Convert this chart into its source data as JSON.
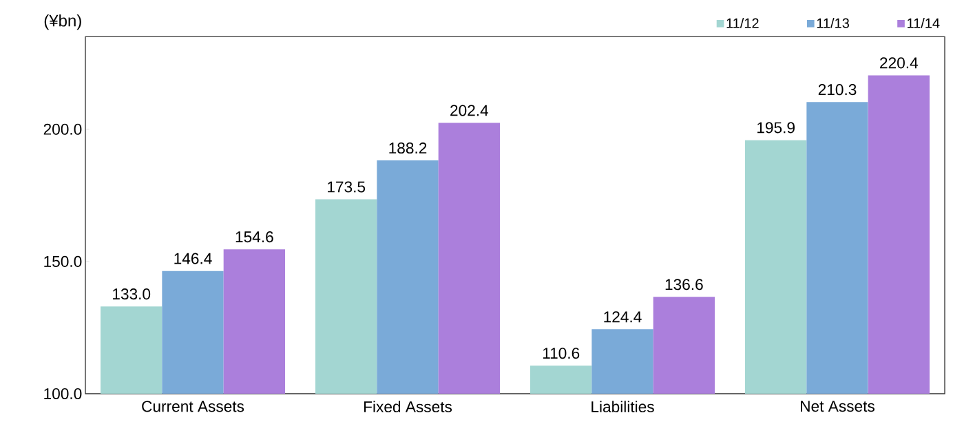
{
  "chart_data": {
    "type": "bar",
    "ylabel": "(¥bn)",
    "categories": [
      "Current Assets",
      "Fixed Assets",
      "Liabilities",
      "Net Assets"
    ],
    "series": [
      {
        "name": "11/12",
        "color": "#a3d6d2",
        "values": [
          133.0,
          173.5,
          110.6,
          195.9
        ],
        "value_labels": [
          "133.0",
          "173.5",
          "110.6",
          "195.9"
        ]
      },
      {
        "name": "11/13",
        "color": "#7aaad8",
        "values": [
          146.4,
          188.2,
          124.4,
          210.3
        ],
        "value_labels": [
          "146.4",
          "188.2",
          "124.4",
          "210.3"
        ]
      },
      {
        "name": "11/14",
        "color": "#ab7fdc",
        "values": [
          154.6,
          202.4,
          136.6,
          220.4
        ],
        "value_labels": [
          "154.6",
          "202.4",
          "136.6",
          "220.4"
        ]
      }
    ],
    "ylim": [
      100,
      235
    ],
    "yticks": [
      {
        "value": 100,
        "label": "100.0"
      },
      {
        "value": 150,
        "label": "150.0"
      },
      {
        "value": 200,
        "label": "200.0"
      }
    ],
    "grid": false,
    "legend": "top right"
  }
}
